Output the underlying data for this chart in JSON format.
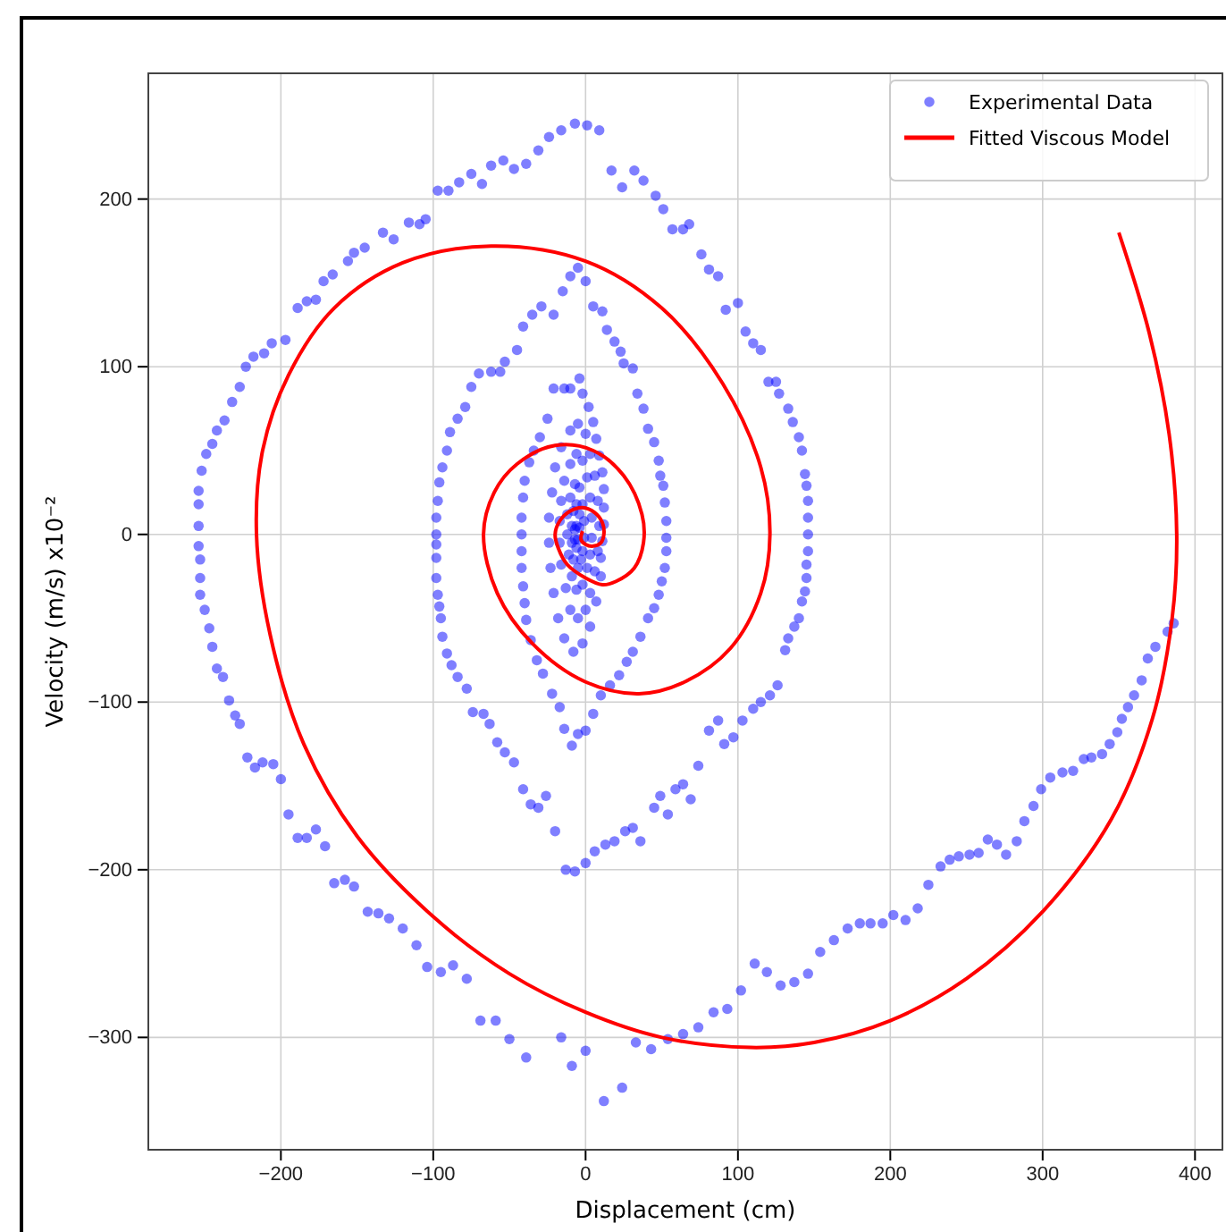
{
  "chart_data": {
    "type": "scatter",
    "xlabel": "Displacement (cm)",
    "ylabel": "Velocity (m/s) x10⁻²",
    "xlim": [
      -287,
      418
    ],
    "ylim": [
      -367,
      275
    ],
    "xticks": [
      {
        "value": -200,
        "label": "−200"
      },
      {
        "value": -100,
        "label": "−100"
      },
      0,
      100,
      200,
      300,
      400
    ],
    "yticks": [
      {
        "value": -300,
        "label": "−300"
      },
      {
        "value": -200,
        "label": "−200"
      },
      {
        "value": -100,
        "label": "−100"
      },
      0,
      100,
      200
    ],
    "grid": true,
    "legend": "top right",
    "series": [
      {
        "name": "Experimental Data",
        "marker": "circle",
        "color": "#0000ff",
        "x": [
          386,
          382,
          374,
          369,
          365,
          360,
          356,
          352,
          349,
          344,
          339,
          332,
          327,
          320,
          313,
          305,
          299,
          294,
          288,
          283,
          276,
          270,
          264,
          258,
          252,
          245,
          239,
          233,
          225,
          218,
          210,
          202,
          195,
          187,
          180,
          172,
          163,
          154,
          146,
          137,
          128,
          119,
          111,
          102,
          93,
          84,
          74,
          64,
          54,
          43,
          33,
          24,
          12,
          0,
          -9,
          -16,
          -39,
          -50,
          -59,
          -69,
          -78,
          -87,
          -95,
          -104,
          -111,
          -120,
          -129,
          -136,
          -143,
          -152,
          -158,
          -165,
          -171,
          -177,
          -183,
          -189,
          -195,
          -200,
          -205,
          -212,
          -217,
          -222,
          -227,
          -230,
          -234,
          -238,
          -242,
          -245,
          -247,
          -250,
          -253,
          -253,
          -253,
          -254,
          -254,
          -254,
          -254,
          -252,
          -249,
          -245,
          -242,
          -237,
          -232,
          -227,
          -223,
          -218,
          -211,
          -206,
          -197,
          -189,
          -183,
          -177,
          -172,
          -166,
          -156,
          -152,
          -145,
          -133,
          -126,
          -116,
          -109,
          -105,
          -97,
          -90,
          -83,
          -75,
          -68,
          -62,
          -54,
          -47,
          -39,
          -31,
          -24,
          -16,
          -7,
          1,
          9,
          17,
          24,
          32,
          38,
          46,
          51,
          57,
          64,
          68,
          76,
          81,
          87,
          92,
          100,
          105,
          110,
          115,
          120,
          125,
          127,
          133,
          136,
          140,
          142,
          144,
          145,
          146,
          146,
          146,
          146,
          145,
          145,
          144,
          142,
          140,
          137,
          133,
          131,
          126,
          121,
          115,
          110,
          103,
          97,
          91,
          87,
          81,
          74,
          69,
          64,
          59,
          54,
          49,
          45,
          36,
          31,
          26,
          19,
          13,
          6,
          0,
          -7,
          -13,
          -20,
          -26,
          -31,
          -36,
          -41,
          -47,
          -53,
          -58,
          -63,
          -67,
          -74,
          -78,
          -84,
          -88,
          -91,
          -94,
          -95,
          -96,
          -97,
          -98,
          -98,
          -98,
          -98,
          -98,
          -97,
          -96,
          -94,
          -91,
          -89,
          -84,
          -79,
          -75,
          -70,
          -62,
          -56,
          -53,
          -45,
          -41,
          -35,
          -29,
          -21,
          -15,
          -10,
          -5,
          0,
          5,
          11,
          14,
          19,
          23,
          25,
          31,
          34,
          38,
          41,
          45,
          48,
          49,
          51,
          52,
          53,
          53,
          53,
          52,
          50,
          48,
          45,
          41,
          36,
          31,
          27,
          22,
          16,
          10,
          5,
          0,
          -5,
          -9,
          -14,
          -17,
          -22,
          -28,
          -32,
          -36,
          -39,
          -40,
          -41,
          -42,
          -42,
          -42,
          -42,
          -41,
          -40,
          -37,
          -34,
          -30,
          -25,
          -21,
          -14,
          -10,
          -4,
          -2,
          2,
          5,
          7,
          9,
          11,
          12,
          12,
          12,
          11,
          10,
          10,
          7,
          3,
          -2,
          -8,
          -14,
          -18,
          -21,
          -23,
          -24,
          -24,
          -22,
          -20,
          -16,
          -10,
          -5,
          0,
          3,
          6,
          8,
          9,
          8,
          6,
          3,
          0,
          -5,
          -10,
          -13,
          -16,
          -17,
          -17,
          -16,
          -14,
          -10,
          -6,
          -2,
          1,
          3,
          4,
          4,
          3,
          1,
          -2,
          -6,
          -9,
          -11,
          -12,
          -12,
          -10,
          -7,
          -4,
          -2,
          -1,
          -1,
          -2,
          -3,
          -5,
          -8,
          -9,
          -9,
          -8,
          -6,
          -4,
          -4,
          -5,
          -6,
          -7,
          -7,
          -6
        ],
        "values": [
          -53,
          -58,
          -67,
          -74,
          -87,
          -96,
          -103,
          -110,
          -118,
          -125,
          -131,
          -133,
          -134,
          -141,
          -142,
          -145,
          -152,
          -162,
          -171,
          -183,
          -191,
          -185,
          -182,
          -190,
          -191,
          -192,
          -194,
          -198,
          -209,
          -223,
          -230,
          -227,
          -232,
          -232,
          -232,
          -235,
          -242,
          -249,
          -262,
          -267,
          -269,
          -261,
          -256,
          -272,
          -283,
          -285,
          -294,
          -298,
          -301,
          -307,
          -303,
          -330,
          -338,
          -308,
          -317,
          -300,
          -312,
          -301,
          -290,
          -290,
          -265,
          -257,
          -261,
          -258,
          -245,
          -235,
          -229,
          -226,
          -225,
          -210,
          -206,
          -208,
          -186,
          -176,
          -181,
          -181,
          -167,
          -146,
          -137,
          -136,
          -139,
          -133,
          -113,
          -108,
          -99,
          -85,
          -80,
          -67,
          -56,
          -45,
          -36,
          -26,
          -15,
          -7,
          5,
          18,
          26,
          38,
          48,
          54,
          62,
          68,
          79,
          88,
          100,
          106,
          108,
          114,
          116,
          135,
          139,
          140,
          151,
          155,
          163,
          168,
          171,
          180,
          176,
          186,
          185,
          188,
          205,
          205,
          210,
          215,
          209,
          220,
          223,
          218,
          221,
          229,
          237,
          241,
          245,
          244,
          241,
          217,
          207,
          217,
          211,
          202,
          194,
          182,
          182,
          185,
          167,
          158,
          154,
          134,
          138,
          121,
          114,
          110,
          91,
          91,
          84,
          75,
          67,
          58,
          50,
          36,
          29,
          20,
          10,
          0,
          -10,
          -18,
          -26,
          -34,
          -40,
          -50,
          -55,
          -62,
          -69,
          -90,
          -96,
          -100,
          -104,
          -111,
          -121,
          -125,
          -111,
          -117,
          -138,
          -158,
          -149,
          -152,
          -167,
          -156,
          -163,
          -183,
          -175,
          -177,
          -183,
          -185,
          -189,
          -196,
          -201,
          -200,
          -177,
          -156,
          -163,
          -161,
          -152,
          -136,
          -130,
          -124,
          -113,
          -107,
          -106,
          -92,
          -85,
          -78,
          -71,
          -61,
          -50,
          -43,
          -36,
          -26,
          -14,
          -6,
          0,
          10,
          20,
          31,
          40,
          50,
          61,
          69,
          76,
          88,
          96,
          97,
          97,
          103,
          110,
          124,
          131,
          136,
          131,
          145,
          154,
          159,
          151,
          136,
          133,
          122,
          115,
          109,
          102,
          99,
          84,
          75,
          63,
          55,
          44,
          35,
          29,
          19,
          8,
          -2,
          -10,
          -20,
          -28,
          -36,
          -44,
          -50,
          -61,
          -70,
          -76,
          -84,
          -90,
          -96,
          -107,
          -117,
          -119,
          -126,
          -116,
          -103,
          -95,
          -83,
          -75,
          -63,
          -51,
          -41,
          -31,
          -20,
          -10,
          0,
          10,
          22,
          32,
          43,
          50,
          58,
          69,
          87,
          87,
          87,
          93,
          84,
          76,
          67,
          57,
          47,
          37,
          27,
          16,
          6,
          -4,
          -14,
          -25,
          -40,
          -55,
          -65,
          -70,
          -62,
          -50,
          -35,
          -20,
          -5,
          10,
          25,
          40,
          52,
          62,
          66,
          60,
          48,
          35,
          20,
          5,
          -10,
          -22,
          -35,
          -45,
          -50,
          -45,
          -32,
          -18,
          -5,
          8,
          20,
          32,
          42,
          48,
          44,
          34,
          22,
          10,
          -2,
          -12,
          -20,
          -30,
          -33,
          -25,
          -12,
          0,
          12,
          22,
          30,
          28,
          18,
          8,
          -2,
          -10,
          -15,
          -20,
          -15,
          -5,
          5,
          14,
          18,
          12,
          4,
          -3,
          -8,
          -3,
          3,
          5
        ]
      },
      {
        "name": "Fitted Viscous Model",
        "type": "line",
        "color": "#ff0000",
        "x": [
          350,
          370,
          383,
          388,
          385,
          372,
          345,
          300,
          250,
          200,
          150,
          108,
          50,
          0,
          -50,
          -100,
          -150,
          -185,
          -207,
          -216,
          -212,
          -195,
          -165,
          -120,
          -62,
          0,
          50,
          90,
          115,
          121,
          115,
          95,
          65,
          35,
          0,
          -35,
          -58,
          -67,
          -60,
          -45,
          -20,
          5,
          25,
          37,
          38,
          32,
          20,
          11,
          0,
          -12,
          -18,
          -20,
          -17,
          -10,
          -2,
          6,
          11,
          12,
          10,
          5,
          0,
          -3,
          -2
        ],
        "values": [
          180,
          120,
          60,
          0,
          -50,
          -110,
          -170,
          -225,
          -265,
          -290,
          -303,
          -306,
          -300,
          -285,
          -262,
          -228,
          -180,
          -125,
          -60,
          0,
          50,
          95,
          135,
          162,
          172,
          163,
          135,
          90,
          40,
          0,
          -35,
          -68,
          -88,
          -95,
          -88,
          -65,
          -35,
          0,
          25,
          42,
          53,
          50,
          35,
          12,
          -5,
          -20,
          -28,
          -30,
          -26,
          -18,
          -8,
          0,
          8,
          14,
          16,
          13,
          7,
          0,
          -5,
          -7,
          -6,
          -3,
          2
        ]
      }
    ]
  }
}
